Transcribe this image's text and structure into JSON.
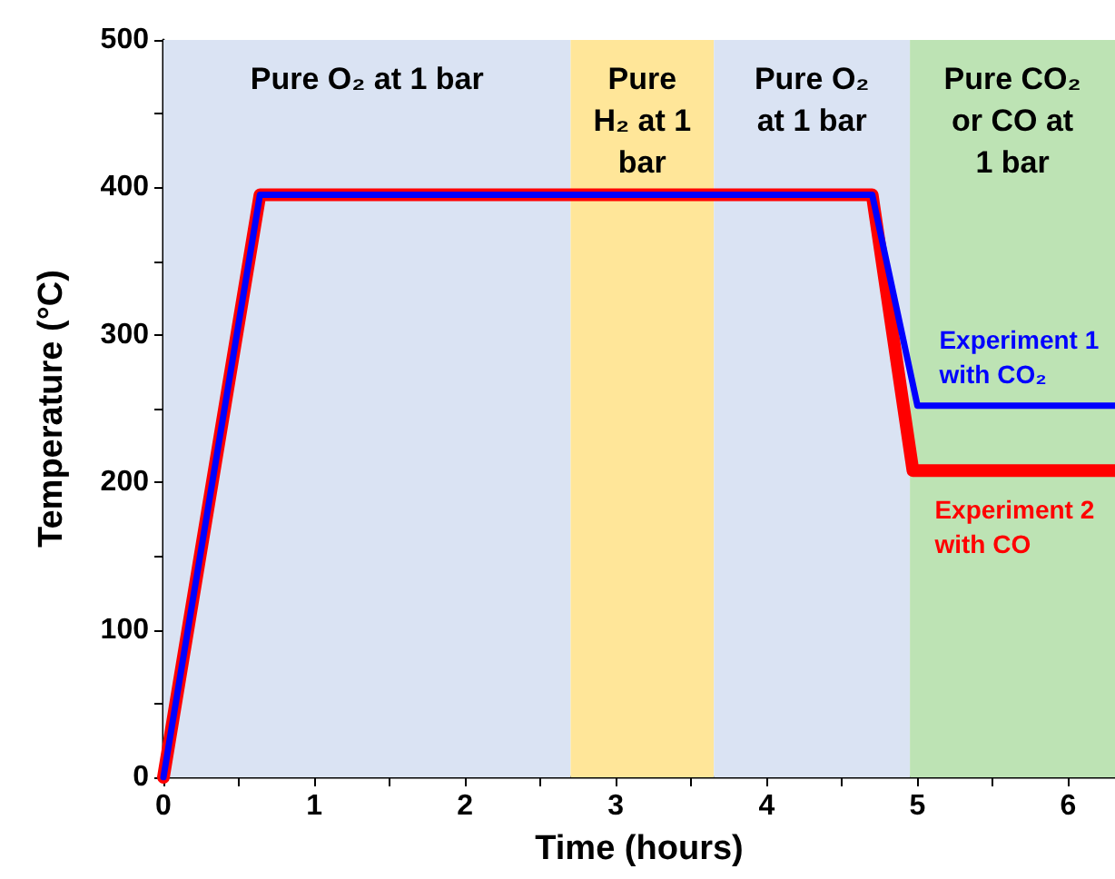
{
  "chart_data": {
    "type": "line",
    "xlabel": "Time (hours)",
    "ylabel": "Temperature (°C)",
    "series": [
      {
        "color": "#ff0000",
        "x": [
          0,
          0.64,
          4.7,
          4.97,
          6.31
        ],
        "values": [
          0,
          395,
          395,
          208,
          208
        ]
      },
      {
        "color": "#0000ff",
        "x": [
          0,
          0.64,
          4.7,
          5.0,
          6.31
        ],
        "values": [
          0,
          395,
          395,
          252,
          252
        ]
      }
    ],
    "xlim": [
      0,
      6.31
    ],
    "xticks": [
      0,
      {
        "value": 0.5,
        "label": null
      },
      1,
      {
        "value": 1.5,
        "label": null
      },
      2,
      {
        "value": 2.5,
        "label": null
      },
      3,
      {
        "value": 3.5,
        "label": null
      },
      4,
      {
        "value": 4.5,
        "label": null
      },
      5,
      {
        "value": 5.5,
        "label": null
      },
      6
    ],
    "ylim": [
      0,
      500
    ],
    "yticks": [
      0,
      {
        "value": 50,
        "label": null
      },
      100,
      {
        "value": 150,
        "label": null
      },
      200,
      {
        "value": 250,
        "label": null
      },
      300,
      {
        "value": 350,
        "label": null
      },
      400,
      {
        "value": 450,
        "label": null
      },
      500
    ],
    "bands": [
      {
        "axis": "x",
        "from": 0,
        "to": 2.7,
        "label": "Pure O₂ at 1 bar",
        "color": "#dae3f3"
      },
      {
        "axis": "x",
        "from": 2.7,
        "to": 3.65,
        "label": "Pure\nH₂ at 1\nbar",
        "color": "#ffe699"
      },
      {
        "axis": "x",
        "from": 3.65,
        "to": 4.95,
        "label": "Pure O₂\nat 1 bar",
        "color": "#dae3f3"
      },
      {
        "axis": "x",
        "from": 4.95,
        "to": 6.31,
        "label": "Pure CO₂\nor CO at\n1 bar",
        "color": "#bde3b4"
      }
    ],
    "annotations": [
      "Experiment 2\nwith CO",
      "Experiment 1\nwith CO₂"
    ],
    "grid": false,
    "marker": "none",
    "line_style": "solid"
  }
}
